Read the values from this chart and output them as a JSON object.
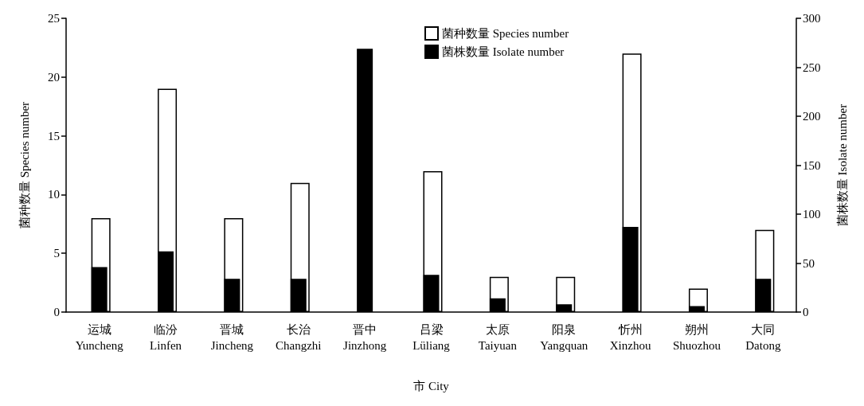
{
  "chart_data": {
    "type": "bar",
    "xlabel": "市 City",
    "ylabel": "菌种数量 Species number",
    "y2label": "菌株数量 Isolate number",
    "categories": [
      "运城\nYuncheng",
      "临汾\nLinfen",
      "晋城\nJincheng",
      "长治\nChangzhi",
      "晋中\nJinzhong",
      "吕梁\nLüliang",
      "太原\nTaiyuan",
      "阳泉\nYangquan",
      "忻州\nXinzhou",
      "朔州\nShuozhou",
      "大同\nDatong"
    ],
    "series": [
      {
        "name": "菌种数量 Species number",
        "color": "#ffffff",
        "values": [
          8,
          19,
          8,
          11,
          null,
          12,
          3,
          3,
          22,
          2,
          7
        ]
      },
      {
        "name": "菌株数量 Isolate number",
        "color": "#000000",
        "axis": "y2",
        "values": [
          46,
          62,
          34,
          34,
          269,
          38,
          14,
          8,
          87,
          6,
          34
        ]
      }
    ],
    "ylim": [
      0,
      25
    ],
    "yticks": [
      0,
      5,
      10,
      15,
      20,
      25
    ],
    "y2lim": [
      0,
      300
    ],
    "y2ticks": [
      0,
      50,
      100,
      150,
      200,
      250,
      300
    ],
    "grid": false,
    "legend": "top"
  }
}
